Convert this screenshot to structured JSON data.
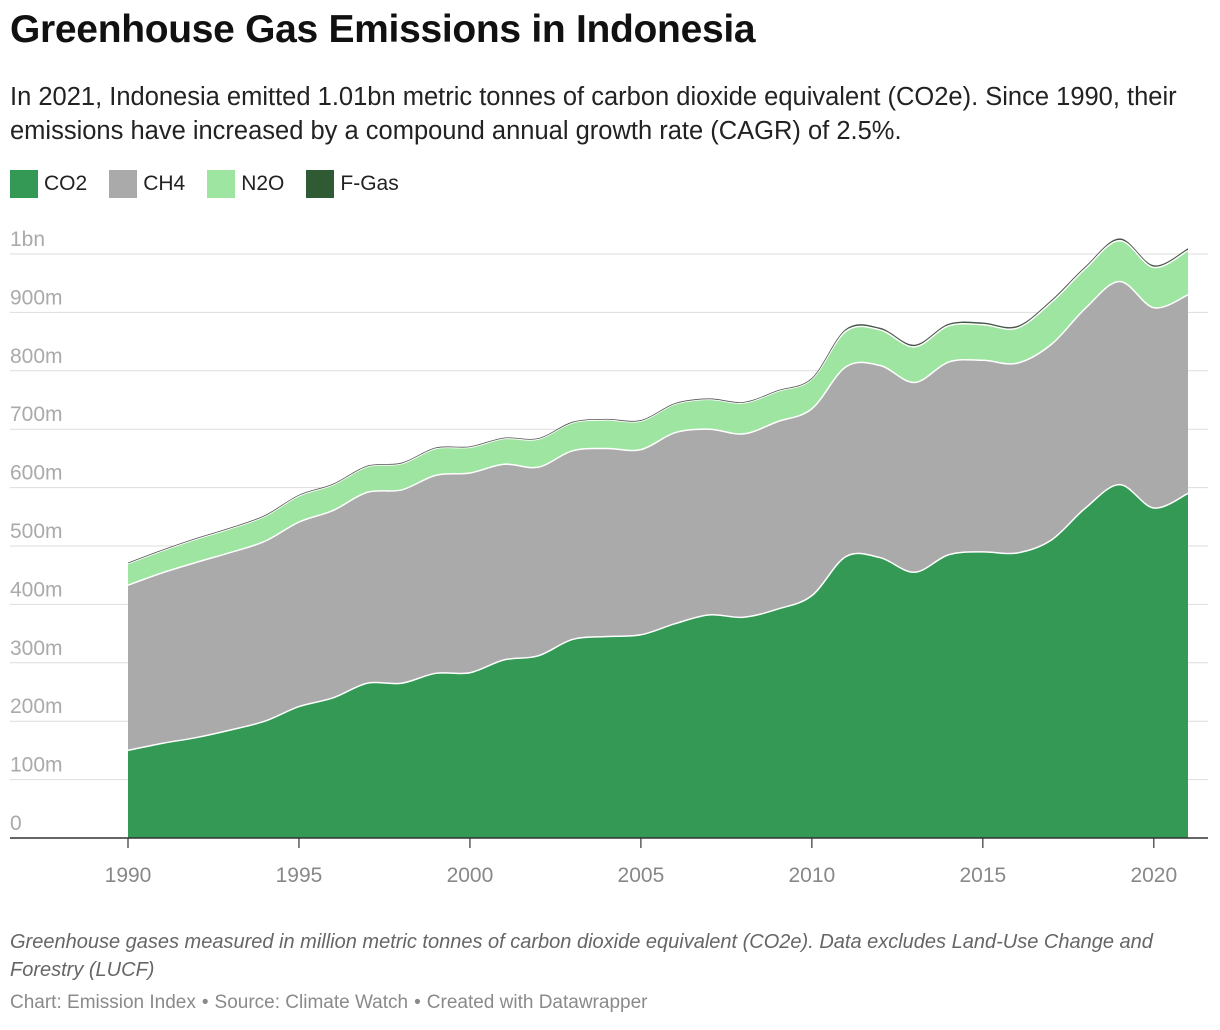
{
  "header": {
    "title": "Greenhouse Gas Emissions in Indonesia",
    "subtitle": "In 2021, Indonesia emitted 1.01bn metric tonnes of carbon dioxide equivalent (CO2e). Since 1990, their emissions have increased by a compound annual growth rate (CAGR) of 2.5%."
  },
  "footer": {
    "notes": "Greenhouse gases measured in million metric tonnes of carbon dioxide equivalent (CO2e). Data excludes Land-Use Change and Forestry (LUCF)",
    "credit_chart": "Chart: Emission Index",
    "credit_source": "Source: Climate Watch",
    "credit_tool": "Created with Datawrapper",
    "separator": "•"
  },
  "colors": {
    "CO2": "#339955",
    "CH4": "#aaaaaa",
    "N2O": "#9fe5a2",
    "F-Gas": "#2f5a34",
    "gridline": "#dddddd",
    "axis": "#333333",
    "tick_text": "#aaaaaa",
    "x_tick_text": "#888888"
  },
  "chart_data": {
    "type": "area",
    "stacked": true,
    "x": [
      1990,
      1991,
      1992,
      1993,
      1994,
      1995,
      1996,
      1997,
      1998,
      1999,
      2000,
      2001,
      2002,
      2003,
      2004,
      2005,
      2006,
      2007,
      2008,
      2009,
      2010,
      2011,
      2012,
      2013,
      2014,
      2015,
      2016,
      2017,
      2018,
      2019,
      2020,
      2021
    ],
    "series": [
      {
        "name": "CO2",
        "values": [
          150,
          162,
          172,
          185,
          200,
          225,
          240,
          265,
          265,
          282,
          283,
          305,
          312,
          340,
          345,
          348,
          367,
          382,
          378,
          392,
          415,
          482,
          480,
          455,
          485,
          490,
          488,
          510,
          565,
          605,
          565,
          590
        ]
      },
      {
        "name": "CH4",
        "values": [
          283,
          292,
          300,
          304,
          308,
          316,
          321,
          327,
          331,
          339,
          342,
          335,
          323,
          323,
          322,
          317,
          327,
          318,
          314,
          321,
          320,
          325,
          329,
          325,
          330,
          328,
          325,
          335,
          342,
          348,
          343,
          340
        ]
      },
      {
        "name": "N2O",
        "values": [
          37,
          38,
          40,
          41,
          43,
          45,
          44,
          44,
          45,
          46,
          44,
          44,
          48,
          48,
          49,
          49,
          49,
          51,
          53,
          52,
          51,
          61,
          61,
          61,
          62,
          61,
          60,
          72,
          68,
          70,
          69,
          76
        ]
      },
      {
        "name": "F-Gas",
        "values": [
          1,
          1,
          1,
          1,
          1,
          1,
          1,
          1,
          1,
          1,
          1,
          1,
          1,
          1,
          1,
          1,
          1,
          1,
          1,
          1,
          1,
          3,
          3,
          3,
          3,
          3,
          3,
          3,
          3,
          3,
          3,
          3
        ]
      }
    ],
    "y_ticks": [
      0,
      100,
      200,
      300,
      400,
      500,
      600,
      700,
      800,
      900,
      1000
    ],
    "y_tick_labels": [
      "0",
      "100m",
      "200m",
      "300m",
      "400m",
      "500m",
      "600m",
      "700m",
      "800m",
      "900m",
      "1bn"
    ],
    "x_ticks": [
      1990,
      1995,
      2000,
      2005,
      2010,
      2015,
      2020
    ],
    "x_tick_labels": [
      "1990",
      "1995",
      "2000",
      "2005",
      "2010",
      "2015",
      "2020"
    ],
    "xlim": [
      1987.3,
      1210
    ],
    "ylim": [
      0,
      1000
    ],
    "grid": true,
    "legend": "top-left"
  }
}
